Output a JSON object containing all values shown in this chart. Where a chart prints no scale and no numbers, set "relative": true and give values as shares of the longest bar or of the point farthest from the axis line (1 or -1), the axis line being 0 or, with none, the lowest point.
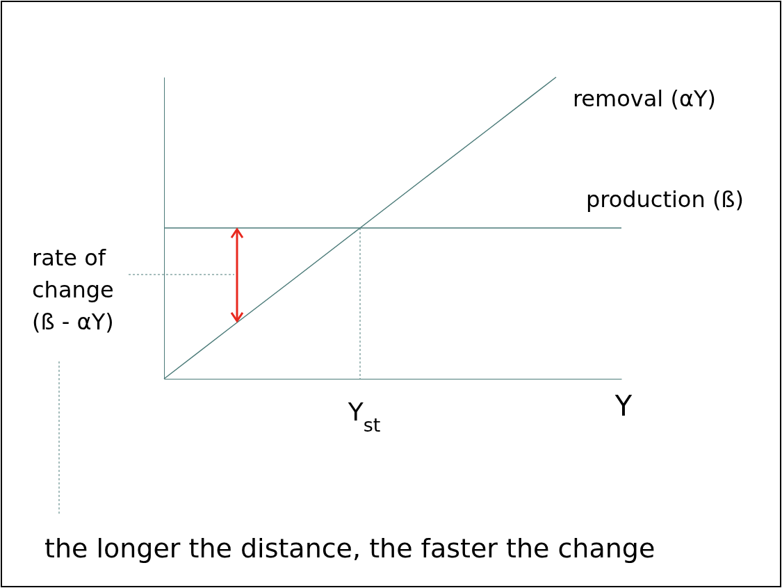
{
  "chart_data": {
    "type": "line",
    "relative": true,
    "xlabel": "Y",
    "categories": [
      null,
      null,
      null,
      null,
      null,
      null,
      null,
      null
    ],
    "series": [
      {
        "name": "removal (αY)",
        "color": "#4a7a78",
        "values": [
          0,
          0.167,
          0.333,
          0.5,
          0.667,
          0.833,
          1,
          null
        ]
      },
      {
        "name": "production (ß)",
        "color": "#4a7a78",
        "values": [
          0.5,
          0.5,
          0.5,
          0.5,
          0.5,
          0.5,
          0.5,
          0.5
        ]
      }
    ],
    "annotations": [
      "rate of change (ß - αY)",
      "Y$_{st}$",
      "the longer the distance, the faster the change"
    ]
  }
}
